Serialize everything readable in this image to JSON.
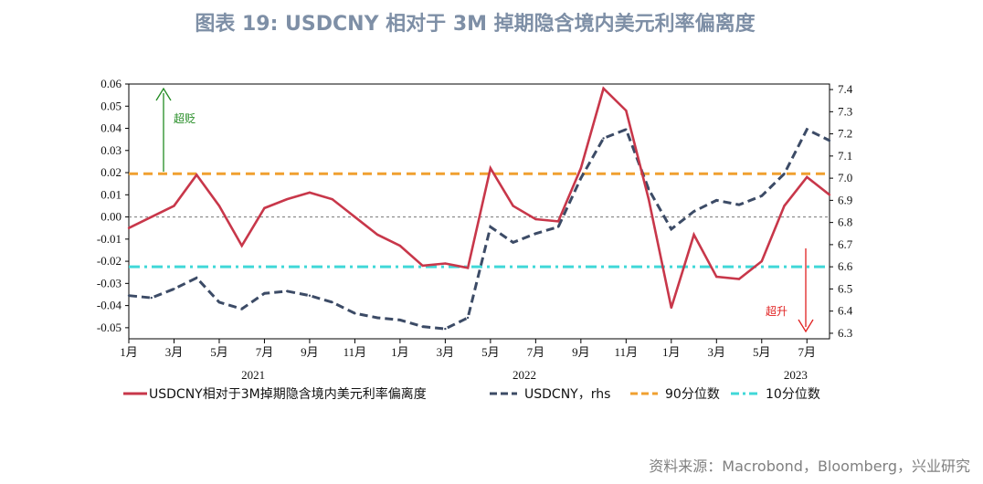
{
  "title": "图表 19: USDCNY 相对于 3M 掉期隐含境内美元利率偏离度",
  "source": "资料来源：Macrobond，Bloomberg，兴业研究",
  "colors": {
    "deviation": "#c8374a",
    "usdcny": "#3c4b66",
    "p90": "#f0a030",
    "p10": "#40d8d8",
    "up": "#228b22",
    "down": "#e02020"
  },
  "chart_data": {
    "type": "line",
    "x_ticks": [
      "1月",
      "3月",
      "5月",
      "7月",
      "9月",
      "11月",
      "1月",
      "3月",
      "5月",
      "7月",
      "9月",
      "11月",
      "1月",
      "3月",
      "5月",
      "7月"
    ],
    "years": [
      "2021",
      "2022",
      "2023"
    ],
    "y_left_ticks": [
      "0.06",
      "0.05",
      "0.04",
      "0.03",
      "0.02",
      "0.01",
      "0.00",
      "-0.01",
      "-0.02",
      "-0.03",
      "-0.04",
      "-0.05"
    ],
    "y_right_ticks": [
      "7.4",
      "7.3",
      "7.2",
      "7.1",
      "7.0",
      "6.9",
      "6.8",
      "6.7",
      "6.6",
      "6.5",
      "6.4",
      "6.3"
    ],
    "ylim_left": [
      -0.055,
      0.06
    ],
    "ylim_right": [
      6.275,
      7.425
    ],
    "xlim": [
      "2021-01",
      "2023-08"
    ],
    "percentile_90": 0.0195,
    "percentile_10": -0.0225,
    "series": [
      {
        "name": "USDCNY相对于3M掉期隐含境内美元利率偏离度",
        "axis": "left",
        "style": "solid",
        "x": [
          "2021-01",
          "2021-02",
          "2021-03",
          "2021-04",
          "2021-05",
          "2021-06",
          "2021-07",
          "2021-08",
          "2021-09",
          "2021-10",
          "2021-11",
          "2021-12",
          "2022-01",
          "2022-02",
          "2022-03",
          "2022-04",
          "2022-05",
          "2022-06",
          "2022-07",
          "2022-08",
          "2022-09",
          "2022-10",
          "2022-11",
          "2022-12",
          "2023-01",
          "2023-02",
          "2023-03",
          "2023-04",
          "2023-05",
          "2023-06",
          "2023-07",
          "2023-08"
        ],
        "values": [
          -0.005,
          0.0,
          0.005,
          0.019,
          0.005,
          -0.013,
          0.004,
          0.008,
          0.011,
          0.008,
          0.0,
          -0.008,
          -0.013,
          -0.022,
          -0.021,
          -0.023,
          0.022,
          0.005,
          -0.001,
          -0.002,
          0.022,
          0.058,
          0.048,
          0.008,
          -0.041,
          -0.008,
          -0.027,
          -0.028,
          -0.02,
          0.005,
          0.018,
          0.01
        ]
      },
      {
        "name": "USDCNY，rhs",
        "axis": "right",
        "style": "dashed",
        "x": [
          "2021-01",
          "2021-02",
          "2021-03",
          "2021-04",
          "2021-05",
          "2021-06",
          "2021-07",
          "2021-08",
          "2021-09",
          "2021-10",
          "2021-11",
          "2021-12",
          "2022-01",
          "2022-02",
          "2022-03",
          "2022-04",
          "2022-05",
          "2022-06",
          "2022-07",
          "2022-08",
          "2022-09",
          "2022-10",
          "2022-11",
          "2022-12",
          "2023-01",
          "2023-02",
          "2023-03",
          "2023-04",
          "2023-05",
          "2023-06",
          "2023-07",
          "2023-08"
        ],
        "values": [
          6.47,
          6.46,
          6.5,
          6.55,
          6.44,
          6.41,
          6.48,
          6.49,
          6.47,
          6.44,
          6.39,
          6.37,
          6.36,
          6.33,
          6.32,
          6.37,
          6.78,
          6.71,
          6.75,
          6.78,
          7.0,
          7.18,
          7.22,
          6.95,
          6.77,
          6.85,
          6.9,
          6.88,
          6.92,
          7.02,
          7.22,
          7.17
        ]
      },
      {
        "name": "90分位数",
        "axis": "left",
        "style": "dashed"
      },
      {
        "name": "10分位数",
        "axis": "left",
        "style": "dashdot"
      }
    ],
    "annotations": {
      "up": "超贬",
      "down": "超升"
    }
  }
}
